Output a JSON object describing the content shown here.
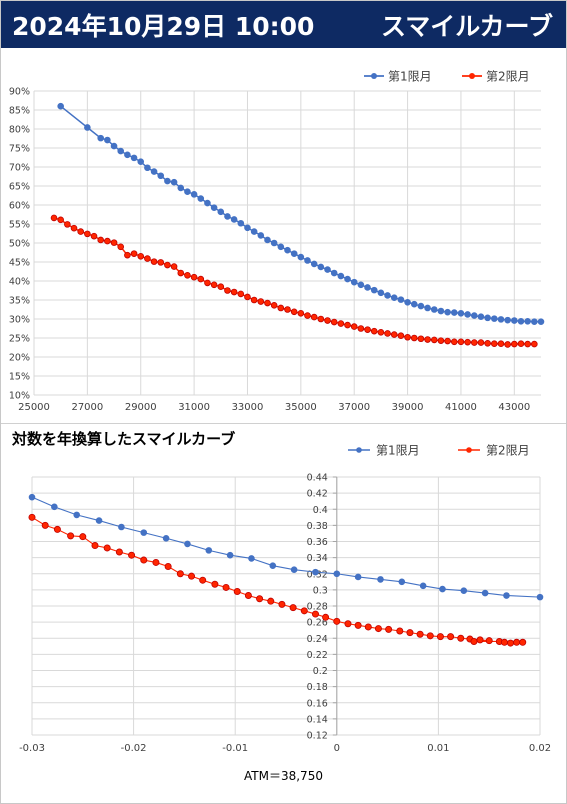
{
  "header": {
    "title_left": "2024年10月29日 10:00",
    "title_right": "スマイルカーブ"
  },
  "colors": {
    "header_bg": "#0e2a63",
    "series1": "#4472c4",
    "series2": "#ff2600"
  },
  "chart_data": [
    {
      "type": "line",
      "title": "",
      "xlabel": "",
      "ylabel": "",
      "legend_position": "top-right",
      "grid": true,
      "xlim": [
        25000,
        44000
      ],
      "ylim": [
        0.1,
        0.9
      ],
      "x_ticks": [
        "25000",
        "27000",
        "29000",
        "31000",
        "33000",
        "35000",
        "37000",
        "39000",
        "41000",
        "43000"
      ],
      "y_ticks": [
        "10%",
        "15%",
        "20%",
        "25%",
        "30%",
        "35%",
        "40%",
        "45%",
        "50%",
        "55%",
        "60%",
        "65%",
        "70%",
        "75%",
        "80%",
        "85%",
        "90%"
      ],
      "series": [
        {
          "name": "第1限月",
          "color": "#4472c4",
          "points": [
            [
              26000,
              0.86
            ],
            [
              27000,
              0.804
            ],
            [
              27500,
              0.776
            ],
            [
              27750,
              0.771
            ],
            [
              28000,
              0.755
            ],
            [
              28250,
              0.742
            ],
            [
              28500,
              0.732
            ],
            [
              28750,
              0.724
            ],
            [
              29000,
              0.714
            ],
            [
              29250,
              0.698
            ],
            [
              29500,
              0.688
            ],
            [
              29750,
              0.677
            ],
            [
              30000,
              0.663
            ],
            [
              30250,
              0.66
            ],
            [
              30500,
              0.645
            ],
            [
              30750,
              0.635
            ],
            [
              31000,
              0.628
            ],
            [
              31250,
              0.617
            ],
            [
              31500,
              0.605
            ],
            [
              31750,
              0.593
            ],
            [
              32000,
              0.582
            ],
            [
              32250,
              0.57
            ],
            [
              32500,
              0.562
            ],
            [
              32750,
              0.552
            ],
            [
              33000,
              0.54
            ],
            [
              33250,
              0.53
            ],
            [
              33500,
              0.52
            ],
            [
              33750,
              0.508
            ],
            [
              34000,
              0.5
            ],
            [
              34250,
              0.49
            ],
            [
              34500,
              0.481
            ],
            [
              34750,
              0.472
            ],
            [
              35000,
              0.463
            ],
            [
              35250,
              0.454
            ],
            [
              35500,
              0.445
            ],
            [
              35750,
              0.437
            ],
            [
              36000,
              0.43
            ],
            [
              36250,
              0.421
            ],
            [
              36500,
              0.413
            ],
            [
              36750,
              0.405
            ],
            [
              37000,
              0.397
            ],
            [
              37250,
              0.39
            ],
            [
              37500,
              0.383
            ],
            [
              37750,
              0.376
            ],
            [
              38000,
              0.369
            ],
            [
              38250,
              0.362
            ],
            [
              38500,
              0.356
            ],
            [
              38750,
              0.351
            ],
            [
              39000,
              0.344
            ],
            [
              39250,
              0.339
            ],
            [
              39500,
              0.334
            ],
            [
              39750,
              0.329
            ],
            [
              40000,
              0.325
            ],
            [
              40250,
              0.321
            ],
            [
              40500,
              0.318
            ],
            [
              40750,
              0.317
            ],
            [
              41000,
              0.315
            ],
            [
              41250,
              0.312
            ],
            [
              41500,
              0.309
            ],
            [
              41750,
              0.306
            ],
            [
              42000,
              0.303
            ],
            [
              42250,
              0.301
            ],
            [
              42500,
              0.299
            ],
            [
              42750,
              0.297
            ],
            [
              43000,
              0.296
            ],
            [
              43250,
              0.294
            ],
            [
              43500,
              0.294
            ],
            [
              43750,
              0.293
            ],
            [
              44000,
              0.293
            ]
          ]
        },
        {
          "name": "第2限月",
          "color": "#ff2600",
          "points": [
            [
              25750,
              0.566
            ],
            [
              26000,
              0.561
            ],
            [
              26250,
              0.549
            ],
            [
              26500,
              0.539
            ],
            [
              26750,
              0.53
            ],
            [
              27000,
              0.524
            ],
            [
              27250,
              0.518
            ],
            [
              27500,
              0.508
            ],
            [
              27750,
              0.505
            ],
            [
              28000,
              0.501
            ],
            [
              28250,
              0.49
            ],
            [
              28500,
              0.468
            ],
            [
              28750,
              0.472
            ],
            [
              29000,
              0.465
            ],
            [
              29250,
              0.459
            ],
            [
              29500,
              0.451
            ],
            [
              29750,
              0.449
            ],
            [
              30000,
              0.442
            ],
            [
              30250,
              0.438
            ],
            [
              30500,
              0.421
            ],
            [
              30750,
              0.415
            ],
            [
              31000,
              0.41
            ],
            [
              31250,
              0.405
            ],
            [
              31500,
              0.395
            ],
            [
              31750,
              0.39
            ],
            [
              32000,
              0.385
            ],
            [
              32250,
              0.375
            ],
            [
              32500,
              0.371
            ],
            [
              32750,
              0.366
            ],
            [
              33000,
              0.358
            ],
            [
              33250,
              0.35
            ],
            [
              33500,
              0.346
            ],
            [
              33750,
              0.342
            ],
            [
              34000,
              0.336
            ],
            [
              34250,
              0.329
            ],
            [
              34500,
              0.325
            ],
            [
              34750,
              0.319
            ],
            [
              35000,
              0.315
            ],
            [
              35250,
              0.309
            ],
            [
              35500,
              0.305
            ],
            [
              35750,
              0.3
            ],
            [
              36000,
              0.296
            ],
            [
              36250,
              0.292
            ],
            [
              36500,
              0.288
            ],
            [
              36750,
              0.284
            ],
            [
              37000,
              0.28
            ],
            [
              37250,
              0.275
            ],
            [
              37500,
              0.272
            ],
            [
              37750,
              0.268
            ],
            [
              38000,
              0.265
            ],
            [
              38250,
              0.262
            ],
            [
              38500,
              0.259
            ],
            [
              38750,
              0.256
            ],
            [
              39000,
              0.252
            ],
            [
              39250,
              0.25
            ],
            [
              39500,
              0.248
            ],
            [
              39750,
              0.246
            ],
            [
              40000,
              0.245
            ],
            [
              40250,
              0.243
            ],
            [
              40500,
              0.242
            ],
            [
              40750,
              0.24
            ],
            [
              41000,
              0.24
            ],
            [
              41250,
              0.239
            ],
            [
              41500,
              0.238
            ],
            [
              41750,
              0.238
            ],
            [
              42000,
              0.236
            ],
            [
              42250,
              0.235
            ],
            [
              42500,
              0.235
            ],
            [
              42750,
              0.233
            ],
            [
              43000,
              0.234
            ],
            [
              43250,
              0.235
            ],
            [
              43500,
              0.234
            ],
            [
              43750,
              0.234
            ]
          ]
        }
      ]
    },
    {
      "type": "line",
      "title": "対数を年換算したスマイルカーブ",
      "xlabel": "",
      "ylabel": "",
      "legend_position": "top-right",
      "grid": true,
      "xlim": [
        -0.03,
        0.02
      ],
      "ylim": [
        0.12,
        0.44
      ],
      "x_ticks": [
        "-0.03",
        "-0.02",
        "-0.01",
        "0",
        "0.01",
        "0.02"
      ],
      "y_ticks": [
        "0.12",
        "0.14",
        "0.16",
        "0.18",
        "0.2",
        "0.22",
        "0.24",
        "0.26",
        "0.28",
        "0.3",
        "0.32",
        "0.34",
        "0.36",
        "0.38",
        "0.4",
        "0.42",
        "0.44"
      ],
      "series": [
        {
          "name": "第1限月",
          "color": "#4472c4",
          "smooth_line": true,
          "points": [
            [
              -0.03,
              0.415
            ],
            [
              -0.0278,
              0.403
            ],
            [
              -0.0256,
              0.393
            ],
            [
              -0.0234,
              0.386
            ],
            [
              -0.0212,
              0.378
            ],
            [
              -0.019,
              0.371
            ],
            [
              -0.0168,
              0.364
            ],
            [
              -0.0147,
              0.357
            ],
            [
              -0.0126,
              0.349
            ],
            [
              -0.0105,
              0.343
            ],
            [
              -0.0084,
              0.339
            ],
            [
              -0.0063,
              0.33
            ],
            [
              -0.0042,
              0.325
            ],
            [
              -0.0021,
              0.322
            ],
            [
              0.0,
              0.32
            ],
            [
              0.0021,
              0.316
            ],
            [
              0.0043,
              0.313
            ],
            [
              0.0064,
              0.31
            ],
            [
              0.0085,
              0.305
            ],
            [
              0.0104,
              0.301
            ],
            [
              0.0125,
              0.299
            ],
            [
              0.0146,
              0.296
            ],
            [
              0.0167,
              0.293
            ],
            [
              0.02,
              0.291
            ]
          ]
        },
        {
          "name": "第2限月",
          "color": "#ff2600",
          "points": [
            [
              -0.03,
              0.39
            ],
            [
              -0.0287,
              0.38
            ],
            [
              -0.0275,
              0.375
            ],
            [
              -0.0262,
              0.367
            ],
            [
              -0.025,
              0.366
            ],
            [
              -0.0238,
              0.355
            ],
            [
              -0.0226,
              0.352
            ],
            [
              -0.0214,
              0.347
            ],
            [
              -0.0202,
              0.343
            ],
            [
              -0.019,
              0.337
            ],
            [
              -0.0178,
              0.334
            ],
            [
              -0.0166,
              0.329
            ],
            [
              -0.0154,
              0.32
            ],
            [
              -0.0143,
              0.317
            ],
            [
              -0.0132,
              0.312
            ],
            [
              -0.012,
              0.307
            ],
            [
              -0.0109,
              0.303
            ],
            [
              -0.0098,
              0.298
            ],
            [
              -0.0087,
              0.293
            ],
            [
              -0.0076,
              0.289
            ],
            [
              -0.0065,
              0.286
            ],
            [
              -0.0054,
              0.282
            ],
            [
              -0.0043,
              0.278
            ],
            [
              -0.0032,
              0.274
            ],
            [
              -0.0021,
              0.27
            ],
            [
              -0.0011,
              0.266
            ],
            [
              0.0,
              0.261
            ],
            [
              0.0011,
              0.258
            ],
            [
              0.0021,
              0.256
            ],
            [
              0.0031,
              0.254
            ],
            [
              0.0041,
              0.252
            ],
            [
              0.0051,
              0.251
            ],
            [
              0.0062,
              0.249
            ],
            [
              0.0072,
              0.247
            ],
            [
              0.0082,
              0.245
            ],
            [
              0.0092,
              0.243
            ],
            [
              0.0102,
              0.242
            ],
            [
              0.0112,
              0.242
            ],
            [
              0.0122,
              0.24
            ],
            [
              0.0131,
              0.239
            ],
            [
              0.0141,
              0.238
            ],
            [
              0.015,
              0.237
            ],
            [
              0.0135,
              0.236
            ],
            [
              0.016,
              0.236
            ],
            [
              0.0165,
              0.235
            ],
            [
              0.0171,
              0.234
            ],
            [
              0.0177,
              0.235
            ],
            [
              0.0183,
              0.235
            ]
          ]
        }
      ]
    }
  ],
  "atm_note": "ATM＝38,750"
}
